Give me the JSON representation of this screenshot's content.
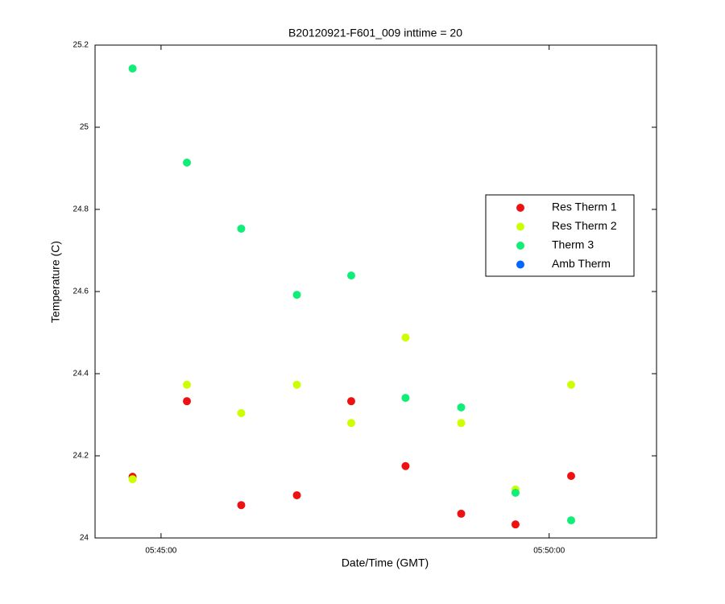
{
  "chart_data": {
    "type": "scatter",
    "title": "B20120921-F601_009 inttime = 20",
    "x_label": "Date/Time (GMT)",
    "y_label": "Temperature (C)",
    "x": [
      "05:44:38",
      "05:45:20",
      "05:46:02",
      "05:46:45",
      "05:47:27",
      "05:48:09",
      "05:48:52",
      "05:49:34",
      "05:50:17"
    ],
    "series": [
      {
        "name": "Res Therm 1",
        "color": "#ee1111",
        "values": [
          24.149,
          24.333,
          24.08,
          24.104,
          24.333,
          24.175,
          24.059,
          24.033,
          24.151
        ]
      },
      {
        "name": "Res Therm 2",
        "color": "#ccff00",
        "values": [
          24.143,
          24.373,
          24.304,
          24.373,
          24.28,
          24.488,
          24.28,
          24.118,
          24.373
        ]
      },
      {
        "name": "Therm 3",
        "color": "#11ee77",
        "values": [
          25.143,
          24.914,
          24.753,
          24.592,
          24.639,
          24.341,
          24.318,
          24.11,
          24.043
        ]
      },
      {
        "name": "Amb Therm",
        "color": "#0066ff",
        "values": [
          null,
          null,
          null,
          null,
          null,
          null,
          null,
          null,
          null
        ]
      }
    ],
    "xlim": [
      "05:44:09",
      "05:51:23"
    ],
    "xticks": [
      "05:45:00",
      "05:50:00"
    ],
    "ylim": [
      24,
      25.2
    ],
    "yticks": [
      24,
      24.2,
      24.4,
      24.6,
      24.8,
      25,
      25.2
    ],
    "grid": false,
    "legend": "upper right"
  }
}
